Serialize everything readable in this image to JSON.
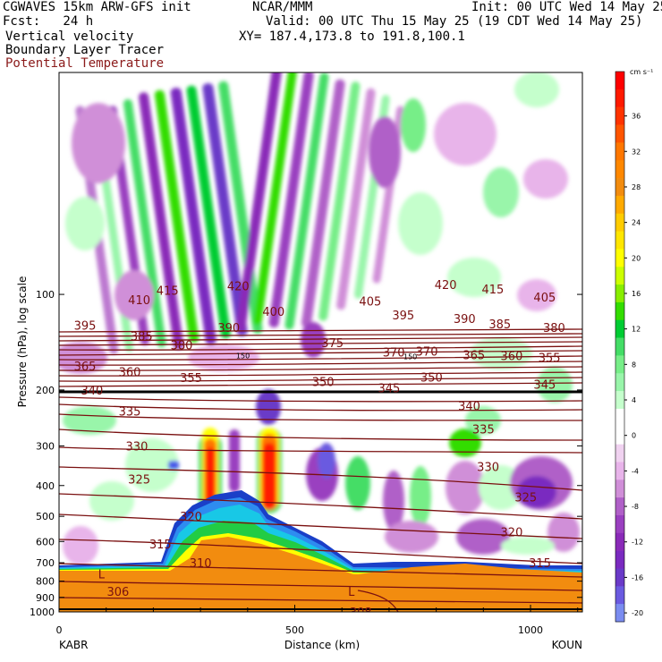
{
  "header": {
    "line1_left": "CGWAVES 15km ARW-GFS init",
    "line1_center": "NCAR/MMM",
    "line1_right": "Init: 00 UTC Wed 14 May 25",
    "line2_left": "Fcst:   24 h",
    "line2_right": "Valid: 00 UTC Thu 15 May 25 (19 CDT Wed 14 May 25)",
    "line3_left": "Vertical velocity",
    "line3_right": "XY= 187.4,173.8 to 191.8,100.1",
    "line4_left": "Boundary Layer Tracer",
    "line5_left": "Potential Temperature"
  },
  "colors": {
    "theta_line": "#7a1010",
    "terrain": "#f28c0f",
    "tropopause": "#000000"
  },
  "chart_data": {
    "type": "heatmap",
    "title": "Vertical velocity / Boundary Layer Tracer / Potential Temperature",
    "xlabel": "Distance (km)",
    "ylabel": "Pressure (hPa), log scale",
    "xlim": [
      0,
      1110
    ],
    "x_ticks": [
      0,
      500,
      1000
    ],
    "ylim_hpa": [
      1000,
      20
    ],
    "y_scale": "log",
    "y_ticks": [
      100,
      200,
      300,
      400,
      500,
      600,
      700,
      800,
      900,
      1000
    ],
    "x_endpoint_labels": {
      "left": "KABR",
      "right": "KOUN"
    },
    "colorbar": {
      "units": "cm s⁻¹",
      "tick_labels": [
        "36",
        "32",
        "28",
        "24",
        "20",
        "16",
        "12",
        "8",
        "4",
        "0",
        "-4",
        "-8",
        "-12",
        "-16",
        "-20"
      ],
      "bins": [
        {
          "value": 40,
          "color": "#ff0000"
        },
        {
          "value": 38,
          "color": "#ff1a00"
        },
        {
          "value": 36,
          "color": "#ff3300"
        },
        {
          "value": 34,
          "color": "#ff5500"
        },
        {
          "value": 32,
          "color": "#ff7700"
        },
        {
          "value": 30,
          "color": "#ff8800"
        },
        {
          "value": 28,
          "color": "#f28c0f"
        },
        {
          "value": 26,
          "color": "#ffaa00"
        },
        {
          "value": 24,
          "color": "#ffcc00"
        },
        {
          "value": 22,
          "color": "#ffe600"
        },
        {
          "value": 20,
          "color": "#ffff00"
        },
        {
          "value": 18,
          "color": "#ccff00"
        },
        {
          "value": 16,
          "color": "#88ee00"
        },
        {
          "value": 14,
          "color": "#33dd00"
        },
        {
          "value": 12,
          "color": "#00cc33"
        },
        {
          "value": 10,
          "color": "#44dd66"
        },
        {
          "value": 8,
          "color": "#77ee88"
        },
        {
          "value": 6,
          "color": "#99f5aa"
        },
        {
          "value": 4,
          "color": "#c5ffcc"
        },
        {
          "value": 2,
          "color": "#ffffff"
        },
        {
          "value": 0,
          "color": "#ffffff"
        },
        {
          "value": -2,
          "color": "#f0d2f0"
        },
        {
          "value": -4,
          "color": "#e8b4ea"
        },
        {
          "value": -6,
          "color": "#d08fd8"
        },
        {
          "value": -8,
          "color": "#b060c8"
        },
        {
          "value": -10,
          "color": "#9a40c0"
        },
        {
          "value": -12,
          "color": "#8a2ab8"
        },
        {
          "value": -14,
          "color": "#7a2ac0"
        },
        {
          "value": -16,
          "color": "#6a3ac8"
        },
        {
          "value": -18,
          "color": "#6a5ae0"
        },
        {
          "value": -20,
          "color": "#7a8cf0"
        }
      ]
    },
    "potential_temperature_labels": [
      {
        "value": "415",
        "x_km": 230,
        "p_hpa": 97
      },
      {
        "value": "410",
        "x_km": 170,
        "p_hpa": 104
      },
      {
        "value": "420",
        "x_km": 380,
        "p_hpa": 94
      },
      {
        "value": "400",
        "x_km": 455,
        "p_hpa": 113
      },
      {
        "value": "405",
        "x_km": 660,
        "p_hpa": 105
      },
      {
        "value": "420",
        "x_km": 820,
        "p_hpa": 93
      },
      {
        "value": "415",
        "x_km": 920,
        "p_hpa": 96
      },
      {
        "value": "405",
        "x_km": 1030,
        "p_hpa": 102
      },
      {
        "value": "395",
        "x_km": 55,
        "p_hpa": 125
      },
      {
        "value": "385",
        "x_km": 175,
        "p_hpa": 135
      },
      {
        "value": "390",
        "x_km": 360,
        "p_hpa": 127
      },
      {
        "value": "395",
        "x_km": 730,
        "p_hpa": 116
      },
      {
        "value": "390",
        "x_km": 860,
        "p_hpa": 119
      },
      {
        "value": "385",
        "x_km": 935,
        "p_hpa": 124
      },
      {
        "value": "380",
        "x_km": 1050,
        "p_hpa": 127
      },
      {
        "value": "380",
        "x_km": 260,
        "p_hpa": 144
      },
      {
        "value": "375",
        "x_km": 580,
        "p_hpa": 142
      },
      {
        "value": "370",
        "x_km": 710,
        "p_hpa": 152
      },
      {
        "value": "370",
        "x_km": 780,
        "p_hpa": 151
      },
      {
        "value": "365",
        "x_km": 880,
        "p_hpa": 155
      },
      {
        "value": "360",
        "x_km": 960,
        "p_hpa": 156
      },
      {
        "value": "355",
        "x_km": 1040,
        "p_hpa": 158
      },
      {
        "value": "365",
        "x_km": 55,
        "p_hpa": 168
      },
      {
        "value": "360",
        "x_km": 150,
        "p_hpa": 175
      },
      {
        "value": "355",
        "x_km": 280,
        "p_hpa": 183
      },
      {
        "value": "350",
        "x_km": 560,
        "p_hpa": 188
      },
      {
        "value": "350",
        "x_km": 790,
        "p_hpa": 182
      },
      {
        "value": "345",
        "x_km": 700,
        "p_hpa": 197
      },
      {
        "value": "345",
        "x_km": 1030,
        "p_hpa": 192
      },
      {
        "value": "340",
        "x_km": 70,
        "p_hpa": 200
      },
      {
        "value": "340",
        "x_km": 870,
        "p_hpa": 224
      },
      {
        "value": "335",
        "x_km": 150,
        "p_hpa": 233
      },
      {
        "value": "335",
        "x_km": 900,
        "p_hpa": 265
      },
      {
        "value": "330",
        "x_km": 165,
        "p_hpa": 300
      },
      {
        "value": "330",
        "x_km": 910,
        "p_hpa": 348
      },
      {
        "value": "325",
        "x_km": 170,
        "p_hpa": 382
      },
      {
        "value": "325",
        "x_km": 990,
        "p_hpa": 435
      },
      {
        "value": "320",
        "x_km": 280,
        "p_hpa": 500
      },
      {
        "value": "320",
        "x_km": 960,
        "p_hpa": 560
      },
      {
        "value": "315",
        "x_km": 215,
        "p_hpa": 610
      },
      {
        "value": "315",
        "x_km": 1020,
        "p_hpa": 700
      },
      {
        "value": "310",
        "x_km": 300,
        "p_hpa": 700
      },
      {
        "value": "306",
        "x_km": 125,
        "p_hpa": 860
      },
      {
        "value": "308",
        "x_km": 640,
        "p_hpa": 1000
      }
    ],
    "tropopause_labels": [
      {
        "value": "150",
        "x_km": 390,
        "p_hpa": 156
      },
      {
        "value": "150",
        "x_km": 745,
        "p_hpa": 157
      }
    ],
    "low_markers": [
      {
        "label": "L",
        "x_km": 90,
        "p_hpa": 760
      },
      {
        "label": "L",
        "x_km": 620,
        "p_hpa": 860
      }
    ]
  }
}
